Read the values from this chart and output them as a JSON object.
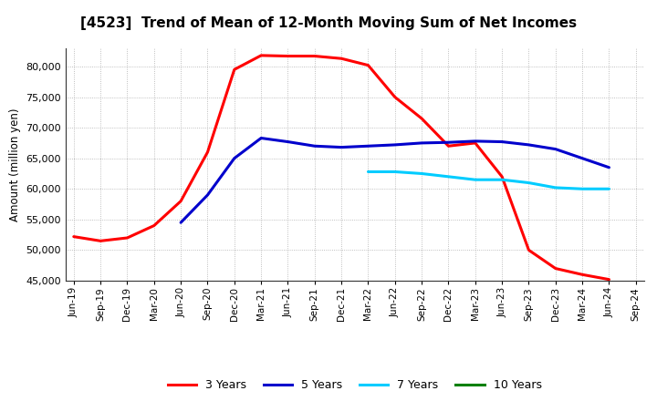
{
  "title": "[4523]  Trend of Mean of 12-Month Moving Sum of Net Incomes",
  "ylabel": "Amount (million yen)",
  "background_color": "#ffffff",
  "plot_bg_color": "#ffffff",
  "grid_color": "#999999",
  "ylim": [
    45000,
    83000
  ],
  "yticks": [
    45000,
    50000,
    55000,
    60000,
    65000,
    70000,
    75000,
    80000
  ],
  "series": {
    "3 Years": {
      "color": "#ff0000",
      "data": [
        52200,
        51500,
        52000,
        54000,
        58000,
        66000,
        79500,
        81800,
        81700,
        81700,
        81300,
        80200,
        75000,
        71500,
        67000,
        67500,
        62000,
        50000,
        47000,
        46000,
        45200,
        null
      ]
    },
    "5 Years": {
      "color": "#0000cc",
      "data": [
        null,
        null,
        null,
        null,
        54500,
        59000,
        65000,
        68300,
        67700,
        67000,
        66800,
        67000,
        67200,
        67500,
        67600,
        67800,
        67700,
        67200,
        66500,
        65000,
        63500,
        null
      ]
    },
    "7 Years": {
      "color": "#00ccff",
      "data": [
        null,
        null,
        null,
        null,
        null,
        null,
        null,
        null,
        null,
        null,
        null,
        62800,
        62800,
        62500,
        62000,
        61500,
        61500,
        61000,
        60200,
        60000,
        60000,
        null
      ]
    },
    "10 Years": {
      "color": "#008000",
      "data": [
        null,
        null,
        null,
        null,
        null,
        null,
        null,
        null,
        null,
        null,
        null,
        null,
        null,
        null,
        null,
        null,
        null,
        null,
        null,
        null,
        null,
        null
      ]
    }
  },
  "xtick_labels": [
    "Jun-19",
    "Sep-19",
    "Dec-19",
    "Mar-20",
    "Jun-20",
    "Sep-20",
    "Dec-20",
    "Mar-21",
    "Jun-21",
    "Sep-21",
    "Dec-21",
    "Mar-22",
    "Jun-22",
    "Sep-22",
    "Dec-22",
    "Mar-23",
    "Jun-23",
    "Sep-23",
    "Dec-23",
    "Mar-24",
    "Jun-24",
    "Sep-24"
  ],
  "series_order": [
    "3 Years",
    "5 Years",
    "7 Years",
    "10 Years"
  ],
  "legend_colors": {
    "3 Years": "#ff0000",
    "5 Years": "#0000cc",
    "7 Years": "#00ccff",
    "10 Years": "#008000"
  }
}
